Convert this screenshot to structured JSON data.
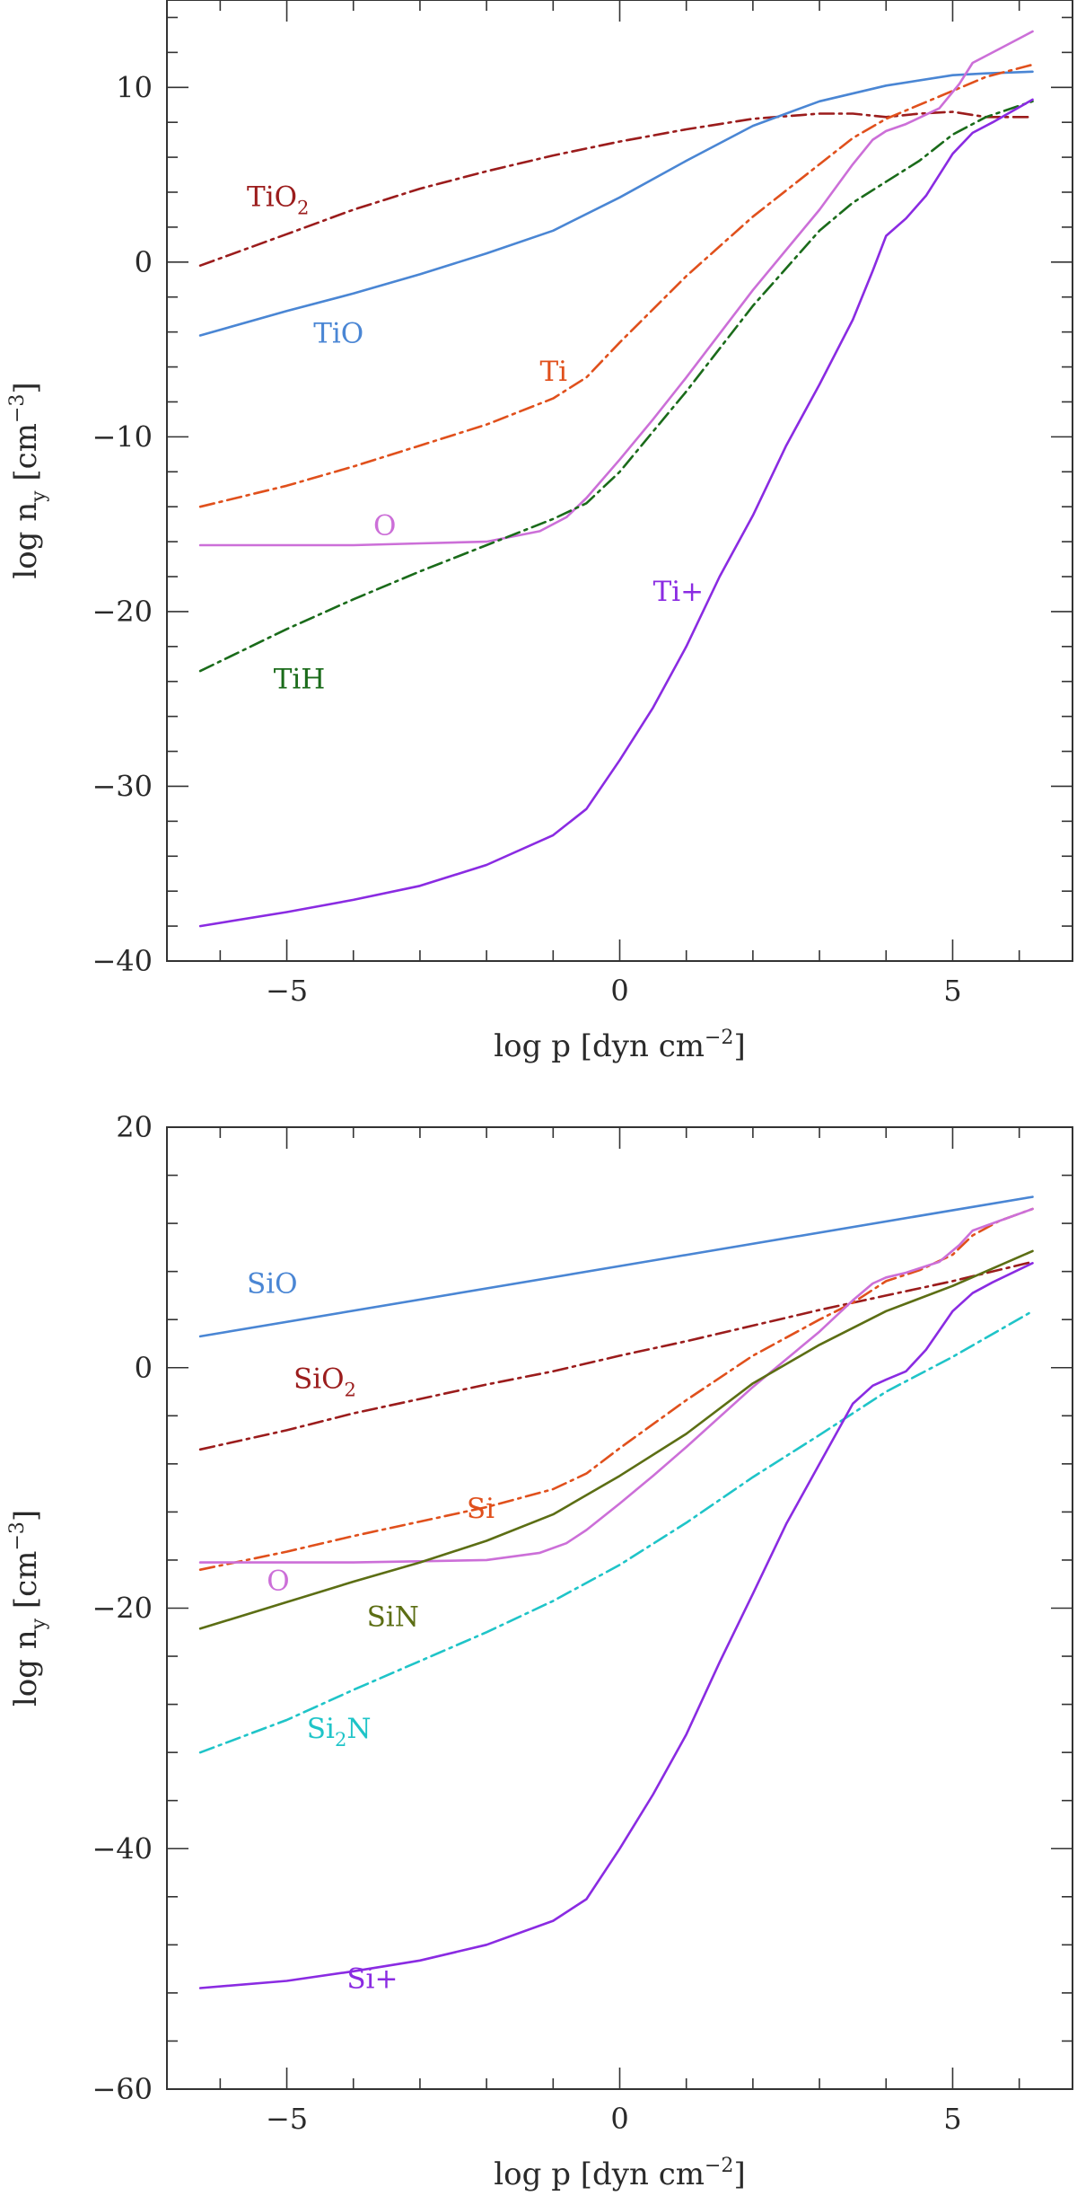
{
  "chart_data": [
    {
      "type": "line",
      "title": "",
      "xlabel": "log p [dyn cm",
      "xlabel_sup": "−2",
      "xlabel_end": "]",
      "ylabel": "log n",
      "ylabel_sub": "y",
      "ylabel_mid": " [cm",
      "ylabel_sup": "−3",
      "ylabel_end": "]",
      "xlim": [
        -6.8,
        6.8
      ],
      "ylim": [
        -40,
        15
      ],
      "xticks": [
        -5,
        0,
        5
      ],
      "xtick_labels": [
        "−5",
        "0",
        "5"
      ],
      "yticks": [
        -40,
        -30,
        -20,
        -10,
        0,
        10
      ],
      "ytick_labels": [
        "−40",
        "−30",
        "−20",
        "−10",
        "0",
        "10"
      ],
      "grid": false,
      "series": [
        {
          "name": "TiO2",
          "label": "TiO",
          "label_sub": "2",
          "color": "#9b1c1c",
          "dash": "dashdot",
          "label_at": [
            -5.6,
            3.2
          ],
          "x": [
            -6.3,
            -5,
            -4,
            -3,
            -2,
            -1,
            0,
            1,
            2,
            3,
            3.5,
            4,
            4.5,
            5,
            5.5,
            6.2
          ],
          "y": [
            -0.2,
            1.6,
            3,
            4.2,
            5.2,
            6.1,
            6.9,
            7.6,
            8.2,
            8.5,
            8.5,
            8.3,
            8.5,
            8.6,
            8.3,
            8.3
          ]
        },
        {
          "name": "TiO",
          "label": "TiO",
          "color": "#4a86d4",
          "dash": "solid",
          "label_at": [
            -4.6,
            -4.6
          ],
          "x": [
            -6.3,
            -5,
            -4,
            -3,
            -2,
            -1,
            0,
            1,
            2,
            3,
            4,
            5,
            5.5,
            6.2
          ],
          "y": [
            -4.2,
            -2.8,
            -1.8,
            -0.7,
            0.5,
            1.8,
            3.7,
            5.8,
            7.8,
            9.2,
            10.1,
            10.7,
            10.8,
            10.9
          ]
        },
        {
          "name": "Ti",
          "label": "Ti",
          "color": "#e0501c",
          "dash": "dashdot",
          "label_at": [
            -1.2,
            -6.8
          ],
          "x": [
            -6.3,
            -5,
            -4,
            -3,
            -2,
            -1,
            -0.5,
            0,
            1,
            2,
            3,
            3.5,
            4,
            4.5,
            5,
            5.5,
            6.2
          ],
          "y": [
            -14,
            -12.8,
            -11.7,
            -10.5,
            -9.3,
            -7.8,
            -6.6,
            -4.6,
            -0.8,
            2.6,
            5.6,
            7.1,
            8.2,
            9,
            9.8,
            10.6,
            11.3
          ]
        },
        {
          "name": "O",
          "label": "O",
          "color": "#cc6fd8",
          "dash": "solid",
          "label_at": [
            -3.7,
            -15.6
          ],
          "x": [
            -6.3,
            -5,
            -4,
            -3,
            -2,
            -1.2,
            -0.8,
            -0.5,
            0,
            0.5,
            1,
            2,
            3,
            3.5,
            3.8,
            4,
            4.3,
            4.8,
            5.1,
            5.3,
            5.7,
            6.2
          ],
          "y": [
            -16.2,
            -16.2,
            -16.2,
            -16.1,
            -16,
            -15.4,
            -14.6,
            -13.5,
            -11.3,
            -9,
            -6.6,
            -1.6,
            3,
            5.6,
            7,
            7.5,
            7.9,
            8.8,
            10.2,
            11.4,
            12.2,
            13.2
          ]
        },
        {
          "name": "TiH",
          "label": "TiH",
          "color": "#1a6b1a",
          "dash": "dashdot",
          "label_at": [
            -5.2,
            -24.4
          ],
          "x": [
            -6.3,
            -5,
            -4,
            -3,
            -2,
            -1,
            -0.5,
            0,
            0.5,
            1,
            2,
            3,
            3.5,
            4,
            4.5,
            5,
            5.5,
            6.2
          ],
          "y": [
            -23.4,
            -21,
            -19.3,
            -17.7,
            -16.2,
            -14.7,
            -13.8,
            -12,
            -9.7,
            -7.4,
            -2.5,
            1.8,
            3.4,
            4.6,
            5.8,
            7.3,
            8.3,
            9.2
          ]
        },
        {
          "name": "Ti+",
          "label": "Ti+",
          "color": "#8a2be2",
          "dash": "solid",
          "label_at": [
            0.5,
            -19.4
          ],
          "x": [
            -6.3,
            -5,
            -4,
            -3,
            -2,
            -1,
            -0.5,
            0,
            0.5,
            1,
            1.5,
            2,
            2.5,
            3,
            3.5,
            3.8,
            4,
            4.3,
            4.6,
            5,
            5.3,
            5.6,
            6.2
          ],
          "y": [
            -38,
            -37.2,
            -36.5,
            -35.7,
            -34.5,
            -32.8,
            -31.3,
            -28.5,
            -25.5,
            -22,
            -18,
            -14.5,
            -10.5,
            -7,
            -3.3,
            -0.5,
            1.5,
            2.5,
            3.8,
            6.2,
            7.4,
            8,
            9.3
          ]
        }
      ]
    },
    {
      "type": "line",
      "title": "",
      "xlabel": "log p [dyn cm",
      "xlabel_sup": "−2",
      "xlabel_end": "]",
      "ylabel": "log n",
      "ylabel_sub": "y",
      "ylabel_mid": " [cm",
      "ylabel_sup": "−3",
      "ylabel_end": "]",
      "xlim": [
        -6.8,
        6.8
      ],
      "ylim": [
        -60,
        20
      ],
      "xticks": [
        -5,
        0,
        5
      ],
      "xtick_labels": [
        "−5",
        "0",
        "5"
      ],
      "yticks": [
        -60,
        -40,
        -20,
        0,
        20
      ],
      "ytick_labels": [
        "−60",
        "−40",
        "−20",
        "0",
        "20"
      ],
      "grid": false,
      "series": [
        {
          "name": "SiO",
          "label": "SiO",
          "color": "#4a86d4",
          "dash": "solid",
          "label_at": [
            -5.6,
            6.2
          ],
          "x": [
            -6.3,
            6.2
          ],
          "y": [
            2.6,
            14.2
          ]
        },
        {
          "name": "SiO2",
          "label": "SiO",
          "label_sub": "2",
          "color": "#9b1c1c",
          "dash": "dashdot",
          "label_at": [
            -4.9,
            -1.7
          ],
          "x": [
            -6.3,
            -5,
            -4,
            -3,
            -2,
            -1,
            0,
            1,
            2,
            3,
            4,
            5,
            6.2
          ],
          "y": [
            -6.8,
            -5.2,
            -3.8,
            -2.6,
            -1.4,
            -0.3,
            1,
            2.2,
            3.5,
            4.8,
            6,
            7.2,
            8.8
          ]
        },
        {
          "name": "Si",
          "label": "Si",
          "color": "#e0501c",
          "dash": "dashdot",
          "label_at": [
            -2.3,
            -12.5
          ],
          "x": [
            -6.3,
            -5,
            -4,
            -3,
            -2,
            -1,
            -0.5,
            0,
            1,
            2,
            3,
            3.5,
            4,
            4.5,
            5,
            5.3,
            5.7,
            6.2
          ],
          "y": [
            -16.8,
            -15.3,
            -14,
            -12.8,
            -11.6,
            -10.1,
            -8.8,
            -6.7,
            -2.7,
            1,
            4,
            5.4,
            7.2,
            8.1,
            9.4,
            11,
            12.2,
            13.2
          ]
        },
        {
          "name": "O",
          "label": "O",
          "color": "#cc6fd8",
          "dash": "solid",
          "label_at": [
            -5.3,
            -18.5
          ],
          "x": [
            -6.3,
            -5,
            -4,
            -3,
            -2,
            -1.2,
            -0.8,
            -0.5,
            0,
            0.5,
            1,
            2,
            3,
            3.5,
            3.8,
            4,
            4.3,
            4.8,
            5.1,
            5.3,
            5.7,
            6.2
          ],
          "y": [
            -16.2,
            -16.2,
            -16.2,
            -16.1,
            -16,
            -15.4,
            -14.6,
            -13.5,
            -11.3,
            -9,
            -6.6,
            -1.6,
            3,
            5.6,
            7,
            7.5,
            7.9,
            8.8,
            10.2,
            11.4,
            12.2,
            13.2
          ]
        },
        {
          "name": "SiN",
          "label": "SiN",
          "color": "#5c6e14",
          "dash": "solid",
          "label_at": [
            -3.8,
            -21.5
          ],
          "x": [
            -6.3,
            -5,
            -4,
            -3,
            -2,
            -1,
            0,
            1,
            2,
            3,
            4,
            5,
            6.2
          ],
          "y": [
            -21.7,
            -19.5,
            -17.8,
            -16.2,
            -14.4,
            -12.2,
            -9,
            -5.5,
            -1.3,
            1.9,
            4.7,
            6.8,
            9.7
          ]
        },
        {
          "name": "Si2N",
          "label": "Si",
          "label_sub": "2",
          "label_end": "N",
          "color": "#1fc4c8",
          "dash": "dashdot",
          "label_at": [
            -4.7,
            -30.8
          ],
          "x": [
            -6.3,
            -5,
            -4,
            -3,
            -2,
            -1,
            0,
            1,
            2,
            3,
            4,
            5,
            6.2
          ],
          "y": [
            -32,
            -29.3,
            -26.8,
            -24.4,
            -22,
            -19.4,
            -16.4,
            -12.9,
            -9.1,
            -5.6,
            -2,
            0.9,
            4.7
          ]
        },
        {
          "name": "Si+",
          "label": "Si+",
          "color": "#8a2be2",
          "dash": "solid",
          "label_at": [
            -4.1,
            -51.6
          ],
          "x": [
            -6.3,
            -5,
            -4,
            -3,
            -2,
            -1,
            -0.5,
            0,
            0.5,
            1,
            1.5,
            2,
            2.5,
            3,
            3.5,
            3.8,
            4,
            4.3,
            4.6,
            5,
            5.3,
            5.6,
            6.2
          ],
          "y": [
            -51.6,
            -51,
            -50.2,
            -49.3,
            -48,
            -46,
            -44.2,
            -40,
            -35.5,
            -30.5,
            -24.5,
            -18.8,
            -13,
            -8,
            -3,
            -1.5,
            -1,
            -0.3,
            1.5,
            4.7,
            6.2,
            7.1,
            8.7
          ]
        }
      ]
    }
  ]
}
